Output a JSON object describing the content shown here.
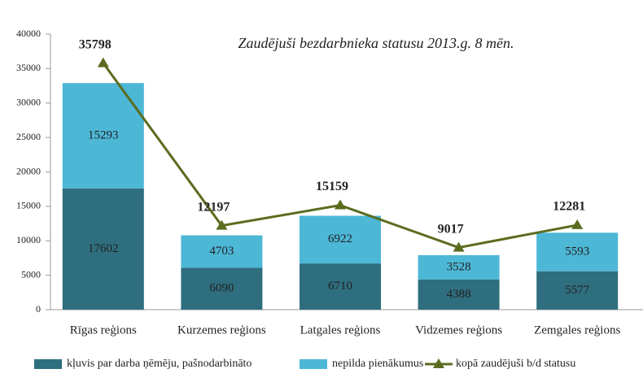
{
  "chart_data": {
    "type": "stacked-bar-line",
    "title": "Zaudējuši bezdarbnieka statusu 2013.g. 8 mēn.",
    "categories": [
      "Rīgas reģions",
      "Kurzemes reģions",
      "Latgales reģions",
      "Vidzemes reģions",
      "Zemgales reģions"
    ],
    "series": [
      {
        "name": "kļuvis par darba ņēmēju, pašnodarbināto",
        "color": "#2f6e7e",
        "kind": "bar",
        "values": [
          17602,
          6090,
          6710,
          4388,
          5577
        ]
      },
      {
        "name": "nepilda pienākumus",
        "color": "#4db7d6",
        "kind": "bar",
        "values": [
          15293,
          4703,
          6922,
          3528,
          5593
        ]
      },
      {
        "name": "kopā zaudējuši b/d statusu",
        "color": "#5b6c1f",
        "kind": "line",
        "values": [
          35798,
          12197,
          15159,
          9017,
          12281
        ]
      }
    ],
    "ylim": [
      0,
      40000
    ],
    "yticks": [
      0,
      5000,
      10000,
      15000,
      20000,
      25000,
      30000,
      35000,
      40000
    ],
    "legend": "bottom"
  }
}
